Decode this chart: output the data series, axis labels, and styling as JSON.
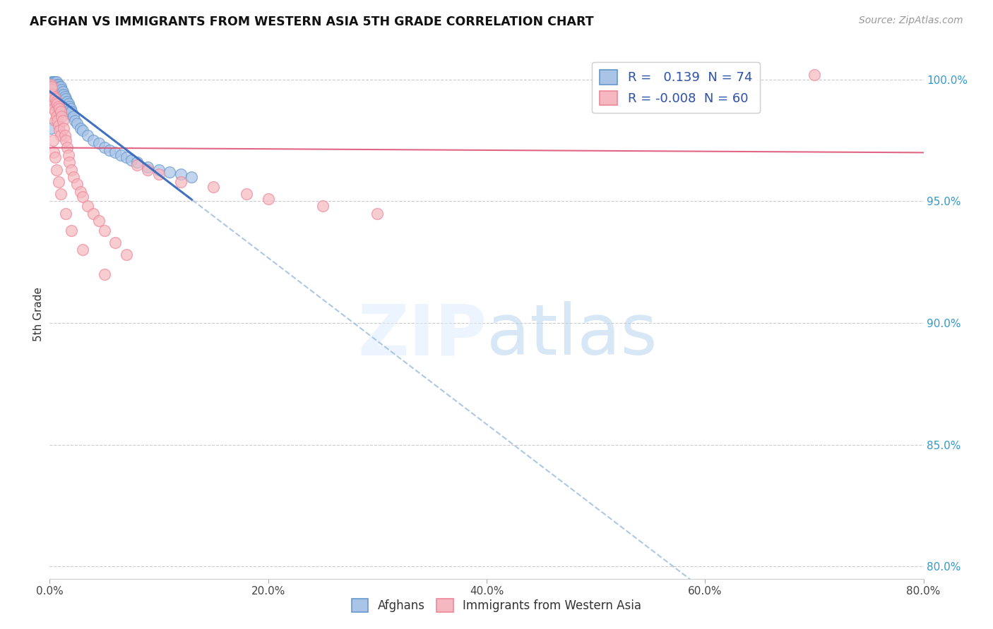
{
  "title": "AFGHAN VS IMMIGRANTS FROM WESTERN ASIA 5TH GRADE CORRELATION CHART",
  "source": "Source: ZipAtlas.com",
  "ylabel_label": "5th Grade",
  "xlim": [
    0.0,
    0.8
  ],
  "ylim": [
    0.795,
    1.012
  ],
  "ytick_positions": [
    0.8,
    0.85,
    0.9,
    0.95,
    1.0
  ],
  "xtick_positions": [
    0.0,
    0.2,
    0.4,
    0.6,
    0.8
  ],
  "xtick_labels": [
    "0.0%",
    "20.0%",
    "40.0%",
    "60.0%",
    "80.0%"
  ],
  "ytick_labels": [
    "80.0%",
    "85.0%",
    "90.0%",
    "95.0%",
    "100.0%"
  ],
  "blue_color": "#aac4e8",
  "blue_edge_color": "#6699cc",
  "pink_color": "#f5b8c0",
  "pink_edge_color": "#ee8899",
  "blue_line_color": "#3366bb",
  "blue_dash_color": "#99bbdd",
  "pink_line_color": "#dd5577",
  "grid_color": "#cccccc",
  "legend_label_color": "#3355aa",
  "legend_R1": "R =   0.139",
  "legend_N1": "N = 74",
  "legend_R2": "R = -0.008",
  "legend_N2": "N = 60",
  "bottom_legend1": "Afghans",
  "bottom_legend2": "Immigrants from Western Asia",
  "blue_scatter_x": [
    0.001,
    0.002,
    0.002,
    0.002,
    0.003,
    0.003,
    0.003,
    0.003,
    0.004,
    0.004,
    0.004,
    0.004,
    0.005,
    0.005,
    0.005,
    0.005,
    0.005,
    0.006,
    0.006,
    0.006,
    0.006,
    0.006,
    0.007,
    0.007,
    0.007,
    0.007,
    0.008,
    0.008,
    0.008,
    0.008,
    0.008,
    0.009,
    0.009,
    0.009,
    0.01,
    0.01,
    0.01,
    0.01,
    0.011,
    0.011,
    0.012,
    0.012,
    0.013,
    0.013,
    0.014,
    0.014,
    0.015,
    0.015,
    0.016,
    0.017,
    0.018,
    0.018,
    0.019,
    0.02,
    0.022,
    0.023,
    0.025,
    0.028,
    0.03,
    0.035,
    0.04,
    0.045,
    0.05,
    0.055,
    0.06,
    0.065,
    0.07,
    0.075,
    0.08,
    0.09,
    0.1,
    0.11,
    0.12,
    0.13
  ],
  "blue_scatter_y": [
    0.98,
    0.999,
    0.997,
    0.994,
    0.999,
    0.998,
    0.996,
    0.993,
    0.999,
    0.997,
    0.994,
    0.991,
    0.999,
    0.998,
    0.996,
    0.993,
    0.99,
    0.999,
    0.997,
    0.995,
    0.992,
    0.989,
    0.998,
    0.996,
    0.993,
    0.989,
    0.998,
    0.996,
    0.993,
    0.99,
    0.986,
    0.997,
    0.995,
    0.991,
    0.997,
    0.994,
    0.991,
    0.987,
    0.996,
    0.992,
    0.995,
    0.991,
    0.994,
    0.99,
    0.993,
    0.989,
    0.992,
    0.988,
    0.991,
    0.99,
    0.989,
    0.986,
    0.988,
    0.987,
    0.985,
    0.983,
    0.982,
    0.98,
    0.979,
    0.977,
    0.975,
    0.974,
    0.972,
    0.971,
    0.97,
    0.969,
    0.968,
    0.967,
    0.966,
    0.964,
    0.963,
    0.962,
    0.961,
    0.96
  ],
  "pink_scatter_x": [
    0.001,
    0.002,
    0.002,
    0.003,
    0.003,
    0.004,
    0.004,
    0.005,
    0.005,
    0.005,
    0.006,
    0.006,
    0.007,
    0.007,
    0.008,
    0.008,
    0.009,
    0.009,
    0.01,
    0.01,
    0.011,
    0.012,
    0.013,
    0.014,
    0.015,
    0.016,
    0.017,
    0.018,
    0.02,
    0.022,
    0.025,
    0.028,
    0.03,
    0.035,
    0.04,
    0.045,
    0.05,
    0.06,
    0.07,
    0.08,
    0.09,
    0.1,
    0.12,
    0.15,
    0.18,
    0.2,
    0.25,
    0.3,
    0.003,
    0.004,
    0.005,
    0.006,
    0.008,
    0.01,
    0.015,
    0.02,
    0.03,
    0.05,
    0.7,
    0.002
  ],
  "pink_scatter_y": [
    0.998,
    0.996,
    0.992,
    0.994,
    0.99,
    0.993,
    0.988,
    0.992,
    0.987,
    0.983,
    0.991,
    0.985,
    0.99,
    0.983,
    0.989,
    0.981,
    0.988,
    0.979,
    0.987,
    0.977,
    0.985,
    0.983,
    0.98,
    0.977,
    0.975,
    0.972,
    0.969,
    0.966,
    0.963,
    0.96,
    0.957,
    0.954,
    0.952,
    0.948,
    0.945,
    0.942,
    0.938,
    0.933,
    0.928,
    0.965,
    0.963,
    0.961,
    0.958,
    0.956,
    0.953,
    0.951,
    0.948,
    0.945,
    0.975,
    0.97,
    0.968,
    0.963,
    0.958,
    0.953,
    0.945,
    0.938,
    0.93,
    0.92,
    1.002,
    0.997
  ]
}
